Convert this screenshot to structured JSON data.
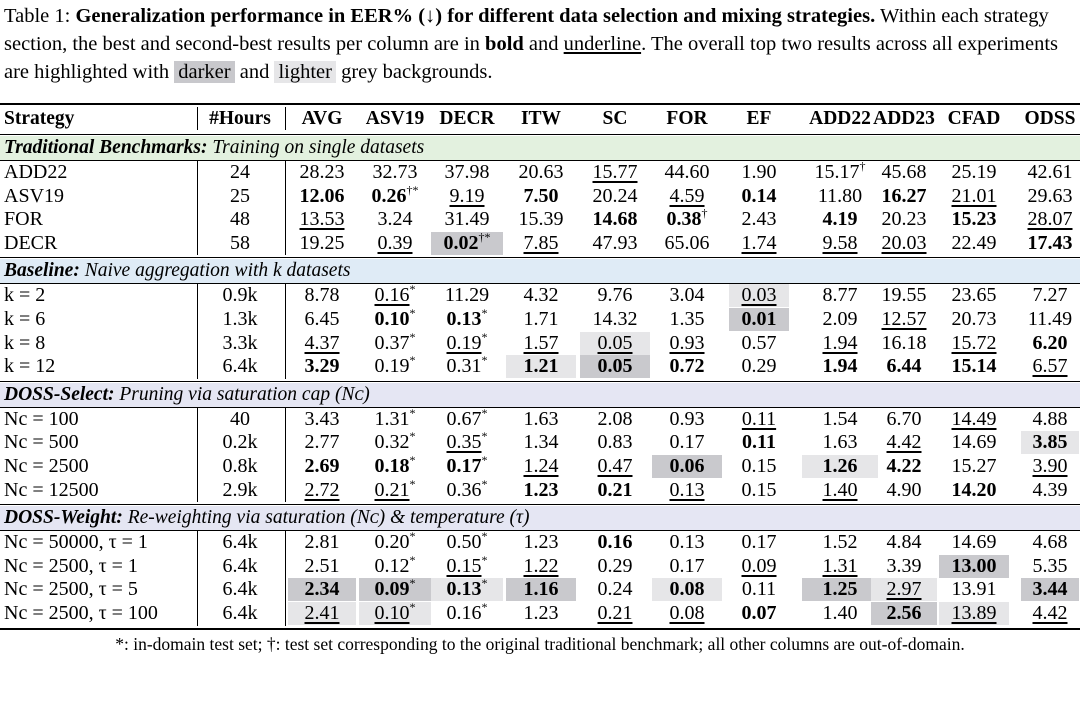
{
  "caption": {
    "prefix": "Table 1: ",
    "bold_title": "Generalization performance in EER% (↓) for different data selection and mixing strategies.",
    "part1": " Within each strategy section, the best and second-best results per column are in ",
    "bold_word": "bold",
    "and1": " and ",
    "underline_word": "underline",
    "part2": ". The overall top two results across all experiments are highlighted with ",
    "darker_word": "darker",
    "and2": " and ",
    "lighter_word": "lighter",
    "part3": " grey backgrounds."
  },
  "columns": [
    "Strategy",
    "#Hours",
    "AVG",
    "ASV19",
    "DECR",
    "ITW",
    "SC",
    "FOR",
    "EF",
    "ADD22",
    "ADD23",
    "CFAD",
    "ODSS"
  ],
  "sections": [
    {
      "name": "Traditional Benchmarks:",
      "desc": " Training on single datasets",
      "color": "#e3f1df",
      "rows": [
        {
          "name": "ADD22",
          "cells": [
            {
              "v": "24"
            },
            {
              "v": "28.23"
            },
            {
              "v": "32.73"
            },
            {
              "v": "37.98"
            },
            {
              "v": "20.63"
            },
            {
              "v": "15.77",
              "u": true
            },
            {
              "v": "44.60"
            },
            {
              "v": "1.90"
            },
            {
              "v": "15.17",
              "sup": "†"
            },
            {
              "v": "45.68"
            },
            {
              "v": "25.19"
            },
            {
              "v": "42.61"
            }
          ]
        },
        {
          "name": "ASV19",
          "cells": [
            {
              "v": "25"
            },
            {
              "v": "12.06",
              "b": true
            },
            {
              "v": "0.26",
              "b": true,
              "sup": "†*"
            },
            {
              "v": "9.19",
              "u": true
            },
            {
              "v": "7.50",
              "b": true
            },
            {
              "v": "20.24"
            },
            {
              "v": "4.59",
              "u": true
            },
            {
              "v": "0.14",
              "b": true
            },
            {
              "v": "11.80"
            },
            {
              "v": "16.27",
              "b": true
            },
            {
              "v": "21.01",
              "u": true
            },
            {
              "v": "29.63"
            }
          ]
        },
        {
          "name": "FOR",
          "cells": [
            {
              "v": "48"
            },
            {
              "v": "13.53",
              "u": true
            },
            {
              "v": "3.24"
            },
            {
              "v": "31.49"
            },
            {
              "v": "15.39"
            },
            {
              "v": "14.68",
              "b": true
            },
            {
              "v": "0.38",
              "b": true,
              "sup": "†"
            },
            {
              "v": "2.43"
            },
            {
              "v": "4.19",
              "b": true
            },
            {
              "v": "20.23"
            },
            {
              "v": "15.23",
              "b": true
            },
            {
              "v": "28.07",
              "u": true
            }
          ]
        },
        {
          "name": "DECR",
          "cells": [
            {
              "v": "58"
            },
            {
              "v": "19.25"
            },
            {
              "v": "0.39",
              "u": true
            },
            {
              "v": "0.02",
              "b": true,
              "sup": "†*",
              "hl": "dark"
            },
            {
              "v": "7.85",
              "u": true
            },
            {
              "v": "47.93"
            },
            {
              "v": "65.06"
            },
            {
              "v": "1.74",
              "u": true
            },
            {
              "v": "9.58",
              "u": true
            },
            {
              "v": "20.03",
              "u": true
            },
            {
              "v": "22.49"
            },
            {
              "v": "17.43",
              "b": true
            }
          ]
        }
      ]
    },
    {
      "name": "Baseline:",
      "desc": " Naive aggregation with k datasets",
      "color": "#dfebf6",
      "rows": [
        {
          "name": "k = 2",
          "cells": [
            {
              "v": "0.9k"
            },
            {
              "v": "8.78"
            },
            {
              "v": "0.16",
              "u": true,
              "sup": "*"
            },
            {
              "v": "11.29"
            },
            {
              "v": "4.32"
            },
            {
              "v": "9.76"
            },
            {
              "v": "3.04"
            },
            {
              "v": "0.03",
              "u": true,
              "hl": "light"
            },
            {
              "v": "8.77"
            },
            {
              "v": "19.55"
            },
            {
              "v": "23.65"
            },
            {
              "v": "7.27"
            }
          ]
        },
        {
          "name": "k = 6",
          "cells": [
            {
              "v": "1.3k"
            },
            {
              "v": "6.45"
            },
            {
              "v": "0.10",
              "b": true,
              "sup": "*"
            },
            {
              "v": "0.13",
              "b": true,
              "sup": "*"
            },
            {
              "v": "1.71"
            },
            {
              "v": "14.32"
            },
            {
              "v": "1.35"
            },
            {
              "v": "0.01",
              "b": true,
              "hl": "dark"
            },
            {
              "v": "2.09"
            },
            {
              "v": "12.57",
              "u": true
            },
            {
              "v": "20.73"
            },
            {
              "v": "11.49"
            }
          ]
        },
        {
          "name": "k = 8",
          "cells": [
            {
              "v": "3.3k"
            },
            {
              "v": "4.37",
              "u": true
            },
            {
              "v": "0.37",
              "sup": "*"
            },
            {
              "v": "0.19",
              "u": true,
              "sup": "*"
            },
            {
              "v": "1.57",
              "u": true
            },
            {
              "v": "0.05",
              "u": true,
              "hl": "light"
            },
            {
              "v": "0.93",
              "u": true
            },
            {
              "v": "0.57"
            },
            {
              "v": "1.94",
              "u": true
            },
            {
              "v": "16.18"
            },
            {
              "v": "15.72",
              "u": true
            },
            {
              "v": "6.20",
              "b": true
            }
          ]
        },
        {
          "name": "k = 12",
          "cells": [
            {
              "v": "6.4k"
            },
            {
              "v": "3.29",
              "b": true
            },
            {
              "v": "0.19",
              "sup": "*"
            },
            {
              "v": "0.31",
              "sup": "*"
            },
            {
              "v": "1.21",
              "b": true,
              "hl": "light"
            },
            {
              "v": "0.05",
              "b": true,
              "hl": "dark"
            },
            {
              "v": "0.72",
              "b": true
            },
            {
              "v": "0.29"
            },
            {
              "v": "1.94",
              "b": true
            },
            {
              "v": "6.44",
              "b": true
            },
            {
              "v": "15.14",
              "b": true
            },
            {
              "v": "6.57",
              "u": true
            }
          ]
        }
      ]
    },
    {
      "name": "DOSS-Select:",
      "desc": " Pruning via saturation cap (Nᴄ)",
      "color": "#e5e6f3",
      "rows": [
        {
          "name": "Nc = 100",
          "cells": [
            {
              "v": "40"
            },
            {
              "v": "3.43"
            },
            {
              "v": "1.31",
              "sup": "*"
            },
            {
              "v": "0.67",
              "sup": "*"
            },
            {
              "v": "1.63"
            },
            {
              "v": "2.08"
            },
            {
              "v": "0.93"
            },
            {
              "v": "0.11",
              "u": true
            },
            {
              "v": "1.54"
            },
            {
              "v": "6.70"
            },
            {
              "v": "14.49",
              "u": true
            },
            {
              "v": "4.88"
            }
          ]
        },
        {
          "name": "Nc = 500",
          "cells": [
            {
              "v": "0.2k"
            },
            {
              "v": "2.77"
            },
            {
              "v": "0.32",
              "sup": "*"
            },
            {
              "v": "0.35",
              "u": true,
              "sup": "*"
            },
            {
              "v": "1.34"
            },
            {
              "v": "0.83"
            },
            {
              "v": "0.17"
            },
            {
              "v": "0.11",
              "b": true
            },
            {
              "v": "1.63"
            },
            {
              "v": "4.42",
              "u": true
            },
            {
              "v": "14.69"
            },
            {
              "v": "3.85",
              "b": true,
              "hl": "light"
            }
          ]
        },
        {
          "name": "Nc = 2500",
          "cells": [
            {
              "v": "0.8k"
            },
            {
              "v": "2.69",
              "b": true
            },
            {
              "v": "0.18",
              "b": true,
              "sup": "*"
            },
            {
              "v": "0.17",
              "b": true,
              "sup": "*"
            },
            {
              "v": "1.24",
              "u": true
            },
            {
              "v": "0.47",
              "u": true
            },
            {
              "v": "0.06",
              "b": true,
              "hl": "dark"
            },
            {
              "v": "0.15"
            },
            {
              "v": "1.26",
              "b": true,
              "hl": "light"
            },
            {
              "v": "4.22",
              "b": true
            },
            {
              "v": "15.27"
            },
            {
              "v": "3.90",
              "u": true
            }
          ]
        },
        {
          "name": "Nc = 12500",
          "cells": [
            {
              "v": "2.9k"
            },
            {
              "v": "2.72",
              "u": true
            },
            {
              "v": "0.21",
              "u": true,
              "sup": "*"
            },
            {
              "v": "0.36",
              "sup": "*"
            },
            {
              "v": "1.23",
              "b": true
            },
            {
              "v": "0.21",
              "b": true
            },
            {
              "v": "0.13",
              "u": true
            },
            {
              "v": "0.15"
            },
            {
              "v": "1.40",
              "u": true
            },
            {
              "v": "4.90"
            },
            {
              "v": "14.20",
              "b": true
            },
            {
              "v": "4.39"
            }
          ]
        }
      ]
    },
    {
      "name": "DOSS-Weight:",
      "desc": " Re-weighting via saturation (Nᴄ) & temperature (τ)",
      "color": "#e5e6f3",
      "rows": [
        {
          "name": "Nc = 50000, τ = 1",
          "cells": [
            {
              "v": "6.4k"
            },
            {
              "v": "2.81"
            },
            {
              "v": "0.20",
              "sup": "*"
            },
            {
              "v": "0.50",
              "sup": "*"
            },
            {
              "v": "1.23"
            },
            {
              "v": "0.16",
              "b": true
            },
            {
              "v": "0.13"
            },
            {
              "v": "0.17"
            },
            {
              "v": "1.52"
            },
            {
              "v": "4.84"
            },
            {
              "v": "14.69"
            },
            {
              "v": "4.68"
            }
          ]
        },
        {
          "name": "Nc = 2500, τ = 1",
          "cells": [
            {
              "v": "6.4k"
            },
            {
              "v": "2.51"
            },
            {
              "v": "0.12",
              "sup": "*"
            },
            {
              "v": "0.15",
              "u": true,
              "sup": "*"
            },
            {
              "v": "1.22",
              "u": true
            },
            {
              "v": "0.29"
            },
            {
              "v": "0.17"
            },
            {
              "v": "0.09",
              "u": true
            },
            {
              "v": "1.31",
              "u": true
            },
            {
              "v": "3.39"
            },
            {
              "v": "13.00",
              "b": true,
              "hl": "dark"
            },
            {
              "v": "5.35"
            }
          ]
        },
        {
          "name": "Nc = 2500, τ = 5",
          "cells": [
            {
              "v": "6.4k"
            },
            {
              "v": "2.34",
              "b": true,
              "hl": "dark"
            },
            {
              "v": "0.09",
              "b": true,
              "sup": "*",
              "hl": "dark"
            },
            {
              "v": "0.13",
              "b": true,
              "sup": "*",
              "hl": "light"
            },
            {
              "v": "1.16",
              "b": true,
              "hl": "dark"
            },
            {
              "v": "0.24"
            },
            {
              "v": "0.08",
              "b": true,
              "hl": "light"
            },
            {
              "v": "0.11"
            },
            {
              "v": "1.25",
              "b": true,
              "hl": "dark"
            },
            {
              "v": "2.97",
              "u": true,
              "hl": "light"
            },
            {
              "v": "13.91"
            },
            {
              "v": "3.44",
              "b": true,
              "hl": "dark"
            }
          ]
        },
        {
          "name": "Nc = 2500, τ = 100",
          "cells": [
            {
              "v": "6.4k"
            },
            {
              "v": "2.41",
              "u": true,
              "hl": "light"
            },
            {
              "v": "0.10",
              "u": true,
              "sup": "*",
              "hl": "light"
            },
            {
              "v": "0.16",
              "sup": "*"
            },
            {
              "v": "1.23"
            },
            {
              "v": "0.21",
              "u": true
            },
            {
              "v": "0.08",
              "u": true
            },
            {
              "v": "0.07",
              "b": true
            },
            {
              "v": "1.40"
            },
            {
              "v": "2.56",
              "b": true,
              "hl": "dark"
            },
            {
              "v": "13.89",
              "u": true,
              "hl": "light"
            },
            {
              "v": "4.42",
              "u": true
            }
          ]
        }
      ]
    }
  ],
  "footnote": "*: in-domain test set; †: test set corresponding to the original traditional benchmark; all other columns are out-of-domain."
}
